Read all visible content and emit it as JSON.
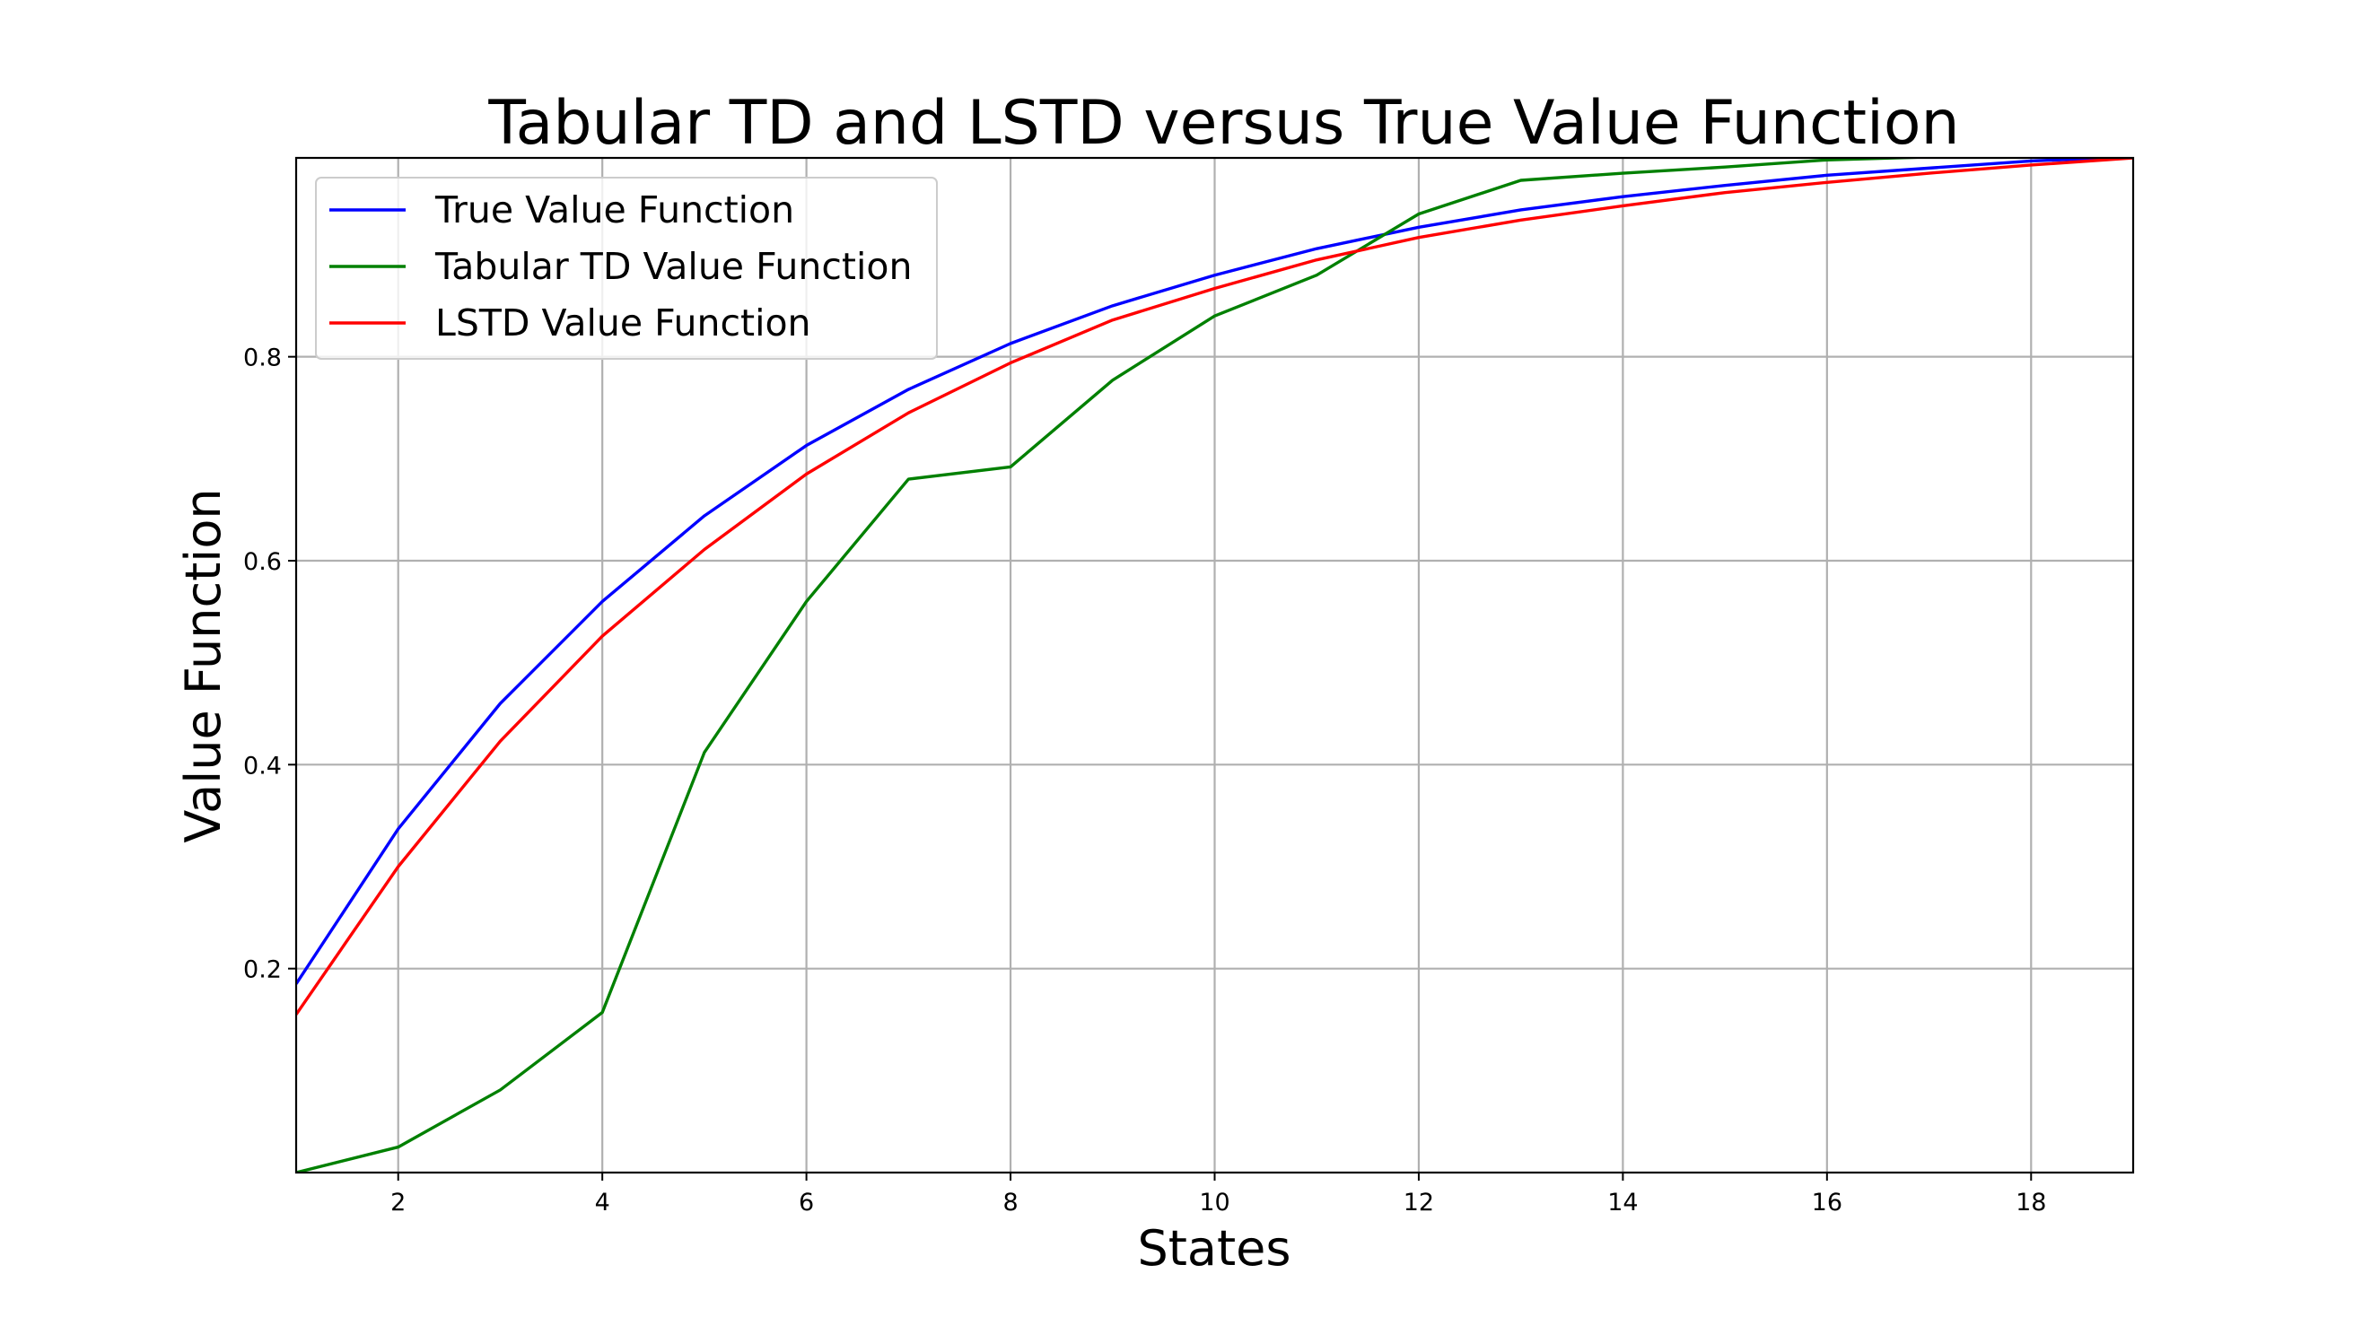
{
  "chart_data": {
    "type": "line",
    "title": "Tabular TD and LSTD versus True Value Function",
    "xlabel": "States",
    "ylabel": "Value Function",
    "xlim": [
      1,
      19
    ],
    "ylim": [
      0.0,
      0.995
    ],
    "xticks": [
      2,
      4,
      6,
      8,
      10,
      12,
      14,
      16,
      18
    ],
    "yticks": [
      0.2,
      0.4,
      0.6,
      0.8
    ],
    "xtick_labels": [
      "2",
      "4",
      "6",
      "8",
      "10",
      "12",
      "14",
      "16",
      "18"
    ],
    "ytick_labels": [
      "0.2",
      "0.4",
      "0.6",
      "0.8"
    ],
    "grid": true,
    "legend_position": "top-left",
    "x": [
      1,
      2,
      3,
      4,
      5,
      6,
      7,
      8,
      9,
      10,
      11,
      12,
      13,
      14,
      15,
      16,
      17,
      18,
      19
    ],
    "series": [
      {
        "name": "True Value Function",
        "color": "#0000ff",
        "values": [
          0.185,
          0.337,
          0.46,
          0.56,
          0.644,
          0.713,
          0.768,
          0.813,
          0.85,
          0.88,
          0.906,
          0.927,
          0.944,
          0.957,
          0.968,
          0.978,
          0.985,
          0.992,
          0.996
        ]
      },
      {
        "name": "Tabular TD Value Function",
        "color": "#008000",
        "values": [
          0.0,
          0.025,
          0.081,
          0.157,
          0.412,
          0.56,
          0.68,
          0.692,
          0.777,
          0.84,
          0.88,
          0.94,
          0.973,
          0.98,
          0.986,
          0.993,
          0.996,
          0.997,
          0.998
        ]
      },
      {
        "name": "LSTD Value Function",
        "color": "#ff0000",
        "values": [
          0.155,
          0.3,
          0.423,
          0.526,
          0.611,
          0.685,
          0.745,
          0.794,
          0.836,
          0.867,
          0.895,
          0.917,
          0.934,
          0.948,
          0.961,
          0.971,
          0.98,
          0.988,
          0.995
        ]
      }
    ]
  }
}
